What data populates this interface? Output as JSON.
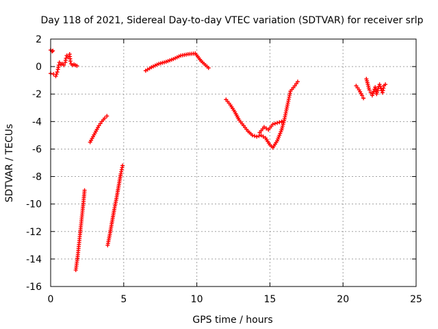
{
  "chart_data": {
    "type": "scatter",
    "title": "Day 118 of 2021, Sidereal Day-to-day VTEC variation (SDTVAR) for receiver srlp",
    "xlabel": "GPS time / hours",
    "ylabel": "SDTVAR / TECUs",
    "xlim": [
      0,
      25
    ],
    "ylim": [
      -16,
      2
    ],
    "xticks": [
      0,
      5,
      10,
      15,
      20,
      25
    ],
    "yticks": [
      -16,
      -14,
      -12,
      -10,
      -8,
      -6,
      -4,
      -2,
      0,
      2
    ],
    "grid": true,
    "marker": "+",
    "color": "#ff0000",
    "series": [
      {
        "name": "SDTVAR",
        "segments": [
          [
            [
              0.0,
              1.2
            ],
            [
              0.1,
              1.1
            ],
            [
              0.15,
              1.15
            ]
          ],
          [
            [
              0.0,
              -0.5
            ],
            [
              0.2,
              -0.55
            ],
            [
              0.35,
              -0.7
            ],
            [
              0.45,
              -0.4
            ],
            [
              0.5,
              -0.2
            ],
            [
              0.55,
              0.1
            ],
            [
              0.6,
              0.3
            ],
            [
              0.7,
              0.15
            ],
            [
              0.8,
              0.2
            ],
            [
              0.9,
              0.1
            ],
            [
              1.0,
              0.3
            ],
            [
              1.05,
              0.6
            ],
            [
              1.1,
              0.8
            ],
            [
              1.2,
              0.7
            ],
            [
              1.3,
              0.9
            ],
            [
              1.35,
              0.4
            ],
            [
              1.4,
              0.2
            ],
            [
              1.5,
              0.1
            ],
            [
              1.6,
              0.15
            ],
            [
              1.7,
              0.1
            ],
            [
              1.8,
              0.05
            ]
          ],
          [
            [
              1.72,
              -14.8
            ],
            [
              1.85,
              -13.8
            ],
            [
              1.95,
              -12.8
            ],
            [
              2.05,
              -11.8
            ],
            [
              2.15,
              -10.8
            ],
            [
              2.25,
              -9.8
            ],
            [
              2.32,
              -9.0
            ]
          ],
          [
            [
              2.7,
              -5.5
            ],
            [
              2.9,
              -5.1
            ],
            [
              3.1,
              -4.7
            ],
            [
              3.3,
              -4.3
            ],
            [
              3.5,
              -4.0
            ],
            [
              3.7,
              -3.75
            ],
            [
              3.85,
              -3.6
            ]
          ],
          [
            [
              3.9,
              -13.0
            ],
            [
              4.05,
              -12.2
            ],
            [
              4.2,
              -11.3
            ],
            [
              4.35,
              -10.4
            ],
            [
              4.5,
              -9.6
            ],
            [
              4.65,
              -8.7
            ],
            [
              4.8,
              -7.8
            ],
            [
              4.92,
              -7.2
            ]
          ],
          [
            [
              6.5,
              -0.3
            ],
            [
              6.9,
              -0.05
            ],
            [
              7.4,
              0.2
            ],
            [
              7.9,
              0.35
            ],
            [
              8.4,
              0.55
            ],
            [
              8.9,
              0.8
            ],
            [
              9.4,
              0.9
            ],
            [
              9.9,
              0.95
            ],
            [
              10.3,
              0.4
            ],
            [
              10.8,
              -0.1
            ]
          ],
          [
            [
              12.0,
              -2.4
            ],
            [
              12.3,
              -2.8
            ],
            [
              12.6,
              -3.3
            ],
            [
              12.9,
              -3.9
            ],
            [
              13.2,
              -4.3
            ],
            [
              13.5,
              -4.7
            ],
            [
              13.8,
              -5.0
            ],
            [
              14.1,
              -5.1
            ],
            [
              14.4,
              -5.0
            ],
            [
              14.7,
              -5.2
            ],
            [
              15.0,
              -5.7
            ],
            [
              15.2,
              -5.9
            ],
            [
              15.5,
              -5.4
            ],
            [
              15.8,
              -4.6
            ],
            [
              16.0,
              -3.8
            ],
            [
              16.2,
              -2.8
            ],
            [
              16.4,
              -1.8
            ],
            [
              16.7,
              -1.4
            ],
            [
              16.9,
              -1.1
            ]
          ],
          [
            [
              14.3,
              -4.8
            ],
            [
              14.6,
              -4.4
            ],
            [
              14.9,
              -4.6
            ],
            [
              15.2,
              -4.2
            ],
            [
              15.5,
              -4.1
            ],
            [
              15.8,
              -4.0
            ]
          ],
          [
            [
              20.9,
              -1.4
            ],
            [
              21.1,
              -1.7
            ],
            [
              21.3,
              -2.1
            ],
            [
              21.4,
              -2.3
            ]
          ],
          [
            [
              21.6,
              -0.9
            ],
            [
              21.7,
              -1.3
            ],
            [
              21.8,
              -1.7
            ],
            [
              21.9,
              -1.9
            ],
            [
              22.0,
              -2.1
            ],
            [
              22.1,
              -1.8
            ],
            [
              22.2,
              -1.5
            ],
            [
              22.3,
              -2.0
            ],
            [
              22.4,
              -1.6
            ],
            [
              22.5,
              -1.3
            ],
            [
              22.6,
              -1.6
            ],
            [
              22.7,
              -1.9
            ],
            [
              22.8,
              -1.4
            ],
            [
              22.9,
              -1.3
            ]
          ]
        ]
      }
    ]
  }
}
